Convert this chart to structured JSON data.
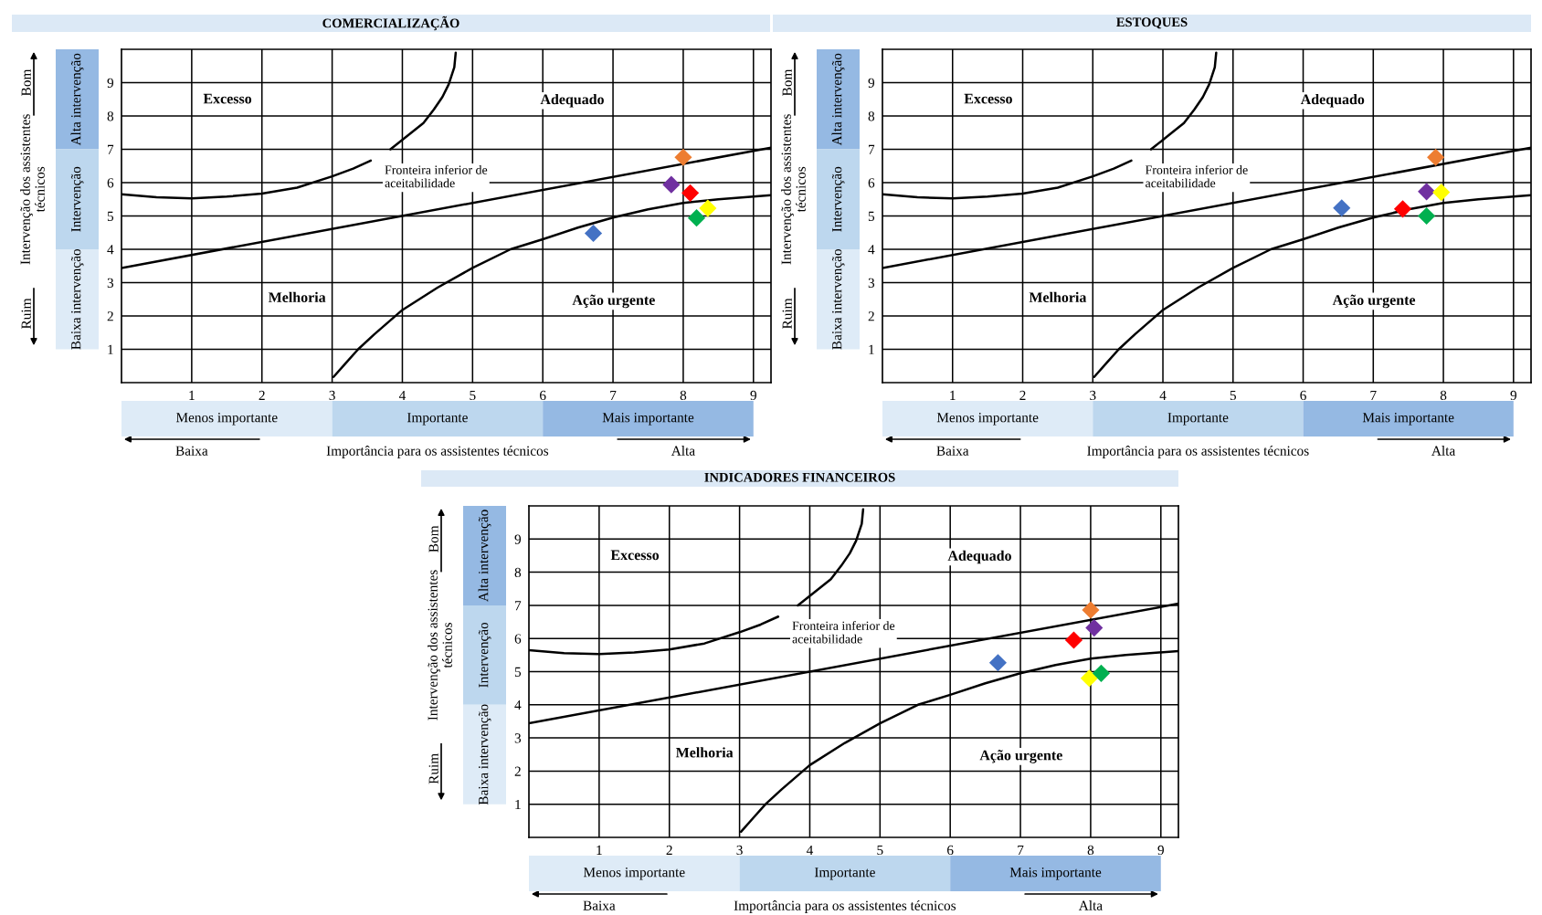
{
  "chart_data": [
    {
      "type": "scatter",
      "title": "COMERCIALIZAÇÃO",
      "xlabel": "Importância para os assistentes técnicos",
      "ylabel": "Intervenção dos assistentes\ntécnicos",
      "xlim": [
        0,
        9.25
      ],
      "ylim": [
        0,
        10
      ],
      "xticks": [
        1,
        2,
        3,
        4,
        5,
        6,
        7,
        8,
        9
      ],
      "yticks": [
        1,
        2,
        3,
        4,
        5,
        6,
        7,
        8,
        9
      ],
      "grid": true,
      "series": [
        {
          "marker": "diamond",
          "x": [
            8.0,
            7.83,
            8.1,
            8.35,
            8.19,
            6.72
          ],
          "values": [
            6.76,
            5.94,
            5.69,
            5.23,
            4.94,
            4.48
          ],
          "colors": [
            "#ed7d31",
            "#7030a0",
            "#ff0000",
            "#ffff00",
            "#00b050",
            "#4472c4"
          ]
        },
        {
          "type": "line",
          "color": "#000000",
          "line_style": "solid",
          "x": [
            0,
            0.5,
            1,
            1.5,
            2,
            2.5,
            3,
            3.3,
            3.55,
            3.69,
            3.83,
            4.1,
            4.3,
            4.45,
            4.57,
            4.66,
            4.74,
            4.76
          ],
          "values": [
            5.65,
            5.56,
            5.53,
            5.58,
            5.67,
            5.85,
            6.19,
            6.42,
            6.66,
            null,
            7.0,
            7.45,
            7.79,
            8.2,
            8.57,
            8.95,
            9.46,
            9.9
          ]
        },
        {
          "type": "line",
          "color": "#000000",
          "line_style": "solid",
          "x": [
            0,
            9.25
          ],
          "values": [
            3.44,
            7.05
          ]
        },
        {
          "type": "line",
          "color": "#000000",
          "line_style": "solid",
          "x": [
            3.02,
            3.2,
            3.37,
            3.6,
            4,
            4.5,
            5,
            5.54,
            6,
            6.5,
            7,
            7.5,
            8,
            8.5,
            9.25
          ],
          "values": [
            0.17,
            0.6,
            1.0,
            1.45,
            2.18,
            2.85,
            3.44,
            4.0,
            4.3,
            4.65,
            4.95,
            5.2,
            5.39,
            5.5,
            5.62
          ]
        }
      ],
      "annotations": [
        "Bom",
        "Ruim",
        "Baixa",
        "Alta",
        "Excesso",
        "Adequado",
        "Melhoria",
        "Ação urgente",
        "Fronteira inferior de\naceitabilidade",
        "Alta intervenção",
        "Intervenção",
        "Baixa intervenção",
        "Menos importante",
        "Importante",
        "Mais importante"
      ]
    },
    {
      "type": "scatter",
      "title": "ESTOQUES",
      "xlabel": "Importância para os assistentes técnicos",
      "ylabel": "Intervenção dos assistentes\ntécnicos",
      "xlim": [
        0,
        9.25
      ],
      "ylim": [
        0,
        10
      ],
      "xticks": [
        1,
        2,
        3,
        4,
        5,
        6,
        7,
        8,
        9
      ],
      "yticks": [
        1,
        2,
        3,
        4,
        5,
        6,
        7,
        8,
        9
      ],
      "grid": true,
      "series": [
        {
          "marker": "diamond",
          "x": [
            7.89,
            7.76,
            7.42,
            7.97,
            7.76,
            6.55
          ],
          "values": [
            6.76,
            5.73,
            5.21,
            5.71,
            5.0,
            5.24
          ],
          "colors": [
            "#ed7d31",
            "#7030a0",
            "#ff0000",
            "#ffff00",
            "#00b050",
            "#4472c4"
          ]
        },
        {
          "type": "line",
          "color": "#000000",
          "line_style": "solid",
          "x": [
            0,
            0.5,
            1,
            1.5,
            2,
            2.5,
            3,
            3.3,
            3.55,
            3.69,
            3.83,
            4.1,
            4.3,
            4.45,
            4.57,
            4.66,
            4.74,
            4.76
          ],
          "values": [
            5.65,
            5.56,
            5.53,
            5.58,
            5.67,
            5.85,
            6.19,
            6.42,
            6.66,
            null,
            7.0,
            7.45,
            7.79,
            8.2,
            8.57,
            8.95,
            9.46,
            9.9
          ]
        },
        {
          "type": "line",
          "color": "#000000",
          "line_style": "solid",
          "x": [
            0,
            9.25
          ],
          "values": [
            3.44,
            7.05
          ]
        },
        {
          "type": "line",
          "color": "#000000",
          "line_style": "solid",
          "x": [
            3.02,
            3.2,
            3.37,
            3.6,
            4,
            4.5,
            5,
            5.54,
            6,
            6.5,
            7,
            7.5,
            8,
            8.5,
            9.25
          ],
          "values": [
            0.17,
            0.6,
            1.0,
            1.45,
            2.18,
            2.85,
            3.44,
            4.0,
            4.3,
            4.65,
            4.95,
            5.2,
            5.39,
            5.5,
            5.62
          ]
        }
      ],
      "annotations": [
        "Bom",
        "Ruim",
        "Baixa",
        "Alta",
        "Excesso",
        "Adequado",
        "Melhoria",
        "Ação urgente",
        "Fronteira inferior de\naceitabilidade",
        "Alta intervenção",
        "Intervenção",
        "Baixa intervenção",
        "Menos importante",
        "Importante",
        "Mais importante"
      ]
    },
    {
      "type": "scatter",
      "title": "INDICADORES FINANCEIROS",
      "xlabel": "Importância para os assistentes técnicos",
      "ylabel": "Intervenção dos assistentes\ntécnicos",
      "xlim": [
        0,
        9.25
      ],
      "ylim": [
        0,
        10
      ],
      "xticks": [
        1,
        2,
        3,
        4,
        5,
        6,
        7,
        8,
        9
      ],
      "yticks": [
        1,
        2,
        3,
        4,
        5,
        6,
        7,
        8,
        9
      ],
      "grid": true,
      "series": [
        {
          "marker": "diamond",
          "x": [
            8.0,
            8.05,
            7.76,
            7.98,
            8.15,
            6.68
          ],
          "values": [
            6.86,
            6.32,
            5.95,
            4.8,
            4.95,
            5.27
          ],
          "colors": [
            "#ed7d31",
            "#7030a0",
            "#ff0000",
            "#ffff00",
            "#00b050",
            "#4472c4"
          ]
        },
        {
          "type": "line",
          "color": "#000000",
          "line_style": "solid",
          "x": [
            0,
            0.5,
            1,
            1.5,
            2,
            2.5,
            3,
            3.3,
            3.55,
            3.69,
            3.83,
            4.1,
            4.3,
            4.45,
            4.57,
            4.66,
            4.74,
            4.76
          ],
          "values": [
            5.65,
            5.56,
            5.53,
            5.58,
            5.67,
            5.85,
            6.19,
            6.42,
            6.66,
            null,
            7.0,
            7.45,
            7.79,
            8.2,
            8.57,
            8.95,
            9.46,
            9.9
          ]
        },
        {
          "type": "line",
          "color": "#000000",
          "line_style": "solid",
          "x": [
            0,
            9.25
          ],
          "values": [
            3.44,
            7.05
          ]
        },
        {
          "type": "line",
          "color": "#000000",
          "line_style": "solid",
          "x": [
            3.02,
            3.2,
            3.37,
            3.6,
            4,
            4.5,
            5,
            5.54,
            6,
            6.5,
            7,
            7.5,
            8,
            8.5,
            9.25
          ],
          "values": [
            0.17,
            0.6,
            1.0,
            1.45,
            2.18,
            2.85,
            3.44,
            4.0,
            4.3,
            4.65,
            4.95,
            5.2,
            5.39,
            5.5,
            5.62
          ]
        }
      ],
      "annotations": [
        "Bom",
        "Ruim",
        "Baixa",
        "Alta",
        "Excesso",
        "Adequado",
        "Melhoria",
        "Ação urgente",
        "Fronteira inferior de\naceitabilidade",
        "Alta intervenção",
        "Intervenção",
        "Baixa intervenção",
        "Menos importante",
        "Importante",
        "Mais importante"
      ]
    }
  ]
}
